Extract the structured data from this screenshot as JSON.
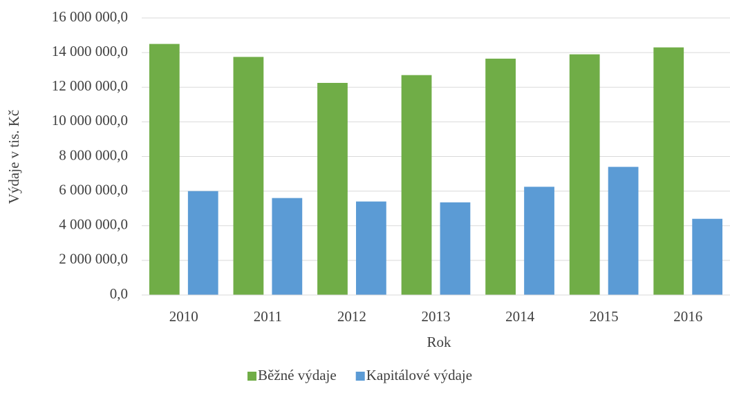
{
  "chart_data": {
    "type": "bar",
    "categories": [
      "2010",
      "2011",
      "2012",
      "2013",
      "2014",
      "2015",
      "2016"
    ],
    "series": [
      {
        "name": "Běžné výdaje",
        "color": "#70ad47",
        "values": [
          14500000,
          13750000,
          12250000,
          12700000,
          13650000,
          13900000,
          14300000
        ]
      },
      {
        "name": "Kapitálové výdaje",
        "color": "#5b9bd5",
        "values": [
          6000000,
          5600000,
          5400000,
          5350000,
          6250000,
          7400000,
          4400000
        ]
      }
    ],
    "xlabel": "Rok",
    "ylabel": "Výdaje v tis. Kč",
    "ylim": [
      0,
      16000000
    ],
    "yticks": [
      {
        "value": 0,
        "label": "0,0"
      },
      {
        "value": 2000000,
        "label": "2 000 000,0"
      },
      {
        "value": 4000000,
        "label": "4 000 000,0"
      },
      {
        "value": 6000000,
        "label": "6 000 000,0"
      },
      {
        "value": 8000000,
        "label": "8 000 000,0"
      },
      {
        "value": 10000000,
        "label": "10 000 000,0"
      },
      {
        "value": 12000000,
        "label": "12 000 000,0"
      },
      {
        "value": 14000000,
        "label": "14 000 000,0"
      },
      {
        "value": 16000000,
        "label": "16 000 000,0"
      }
    ],
    "grid": true,
    "legend": "bottom"
  }
}
